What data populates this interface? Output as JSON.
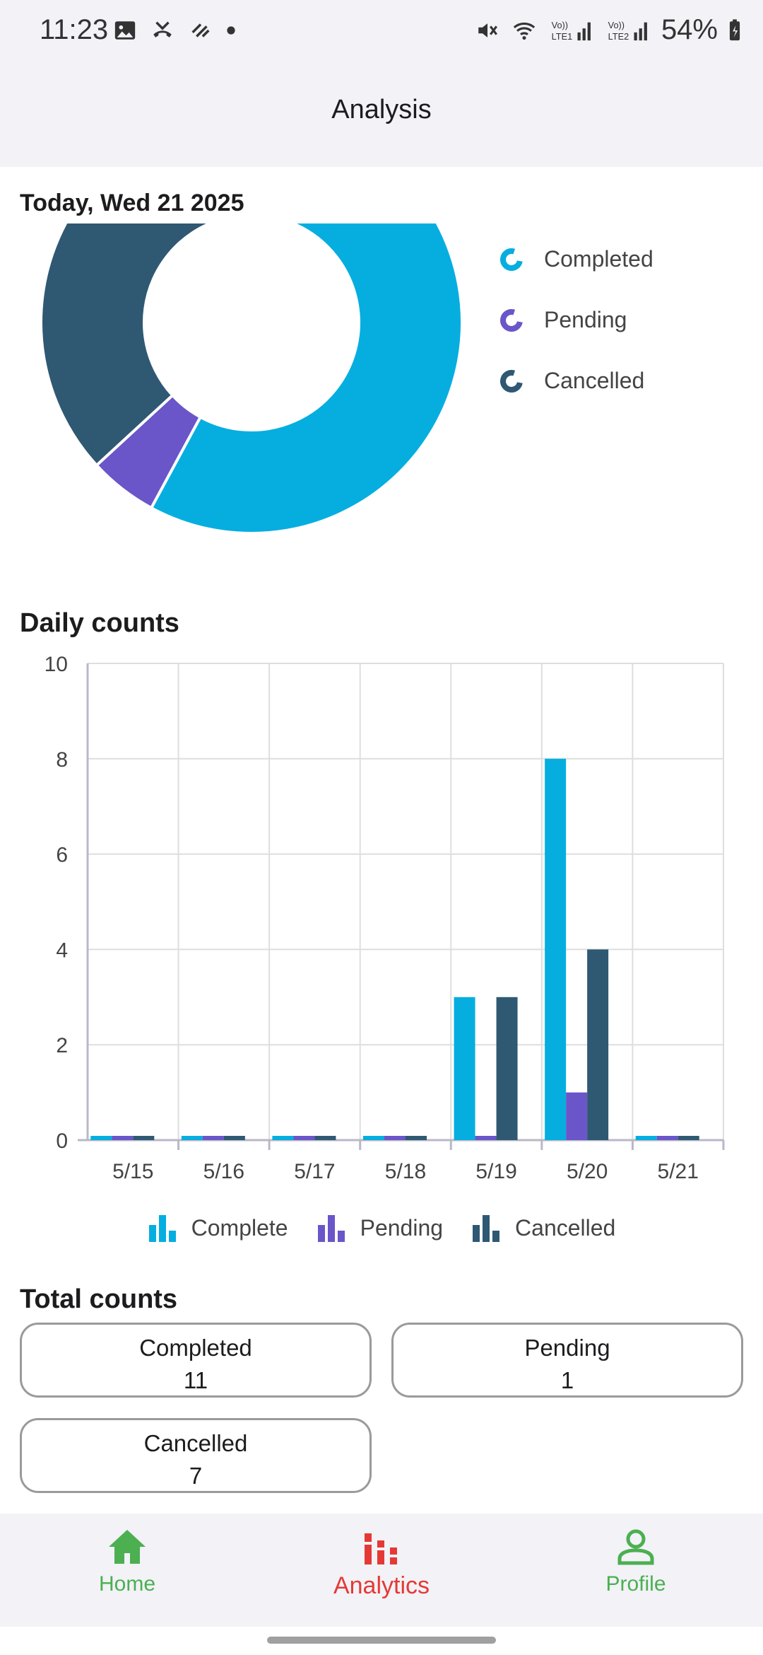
{
  "status_bar": {
    "time": "11:23",
    "battery": "54%"
  },
  "app_bar": {
    "title": "Analysis"
  },
  "date_label": "Today, Wed 21 2025",
  "donut": {
    "legend": [
      {
        "label": "Completed",
        "color": "#06aee0"
      },
      {
        "label": "Pending",
        "color": "#6a55c9"
      },
      {
        "label": "Cancelled",
        "color": "#2f5873"
      }
    ]
  },
  "daily_title": "Daily counts",
  "chart_data": [
    {
      "type": "pie",
      "subtype": "donut",
      "title": "",
      "categories": [
        "Completed",
        "Pending",
        "Cancelled"
      ],
      "values": [
        11,
        1,
        7
      ],
      "colors": [
        "#06aee0",
        "#6a55c9",
        "#2f5873"
      ]
    },
    {
      "type": "bar",
      "title": "Daily counts",
      "categories": [
        "5/15",
        "5/16",
        "5/17",
        "5/18",
        "5/19",
        "5/20",
        "5/21"
      ],
      "series": [
        {
          "name": "Complete",
          "color": "#06aee0",
          "values": [
            0,
            0,
            0,
            0,
            3,
            8,
            0
          ]
        },
        {
          "name": "Pending",
          "color": "#6a55c9",
          "values": [
            0,
            0,
            0,
            0,
            0,
            1,
            0
          ]
        },
        {
          "name": "Cancelled",
          "color": "#2f5873",
          "values": [
            0,
            0,
            0,
            0,
            3,
            4,
            0
          ]
        }
      ],
      "yticks": [
        "0",
        "2",
        "4",
        "6",
        "8",
        "10"
      ],
      "ylim": [
        0,
        10
      ],
      "grid": true,
      "legend": "bottom"
    }
  ],
  "totals": {
    "title": "Total counts",
    "completed": {
      "label": "Completed",
      "value": "11"
    },
    "pending": {
      "label": "Pending",
      "value": "1"
    },
    "cancelled": {
      "label": "Cancelled",
      "value": "7"
    }
  },
  "nav": {
    "home": {
      "label": "Home",
      "color": "#4caf50"
    },
    "analytics": {
      "label": "Analytics",
      "color": "#e53935"
    },
    "profile": {
      "label": "Profile",
      "color": "#4caf50"
    }
  }
}
